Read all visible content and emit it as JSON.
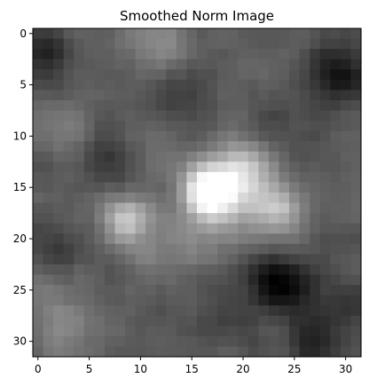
{
  "chart_data": {
    "type": "heatmap",
    "title": "Smoothed Norm Image",
    "xlabel": "",
    "ylabel": "",
    "colormap": "gray",
    "rows": 32,
    "cols": 32,
    "xlim": [
      -0.5,
      31.5
    ],
    "ylim": [
      31.5,
      -0.5
    ],
    "x_ticks": [
      0,
      5,
      10,
      15,
      20,
      25,
      30
    ],
    "y_ticks": [
      0,
      5,
      10,
      15,
      20,
      25,
      30
    ],
    "x_tick_labels": [
      "0",
      "5",
      "10",
      "15",
      "20",
      "25",
      "30"
    ],
    "y_tick_labels": [
      "0",
      "5",
      "10",
      "15",
      "20",
      "25",
      "30"
    ],
    "value_range": [
      0,
      1
    ],
    "blobs": [
      {
        "row": 15.5,
        "col": 16.5,
        "amp": 0.62,
        "sigma": 1.6
      },
      {
        "row": 15.5,
        "col": 19.0,
        "amp": 0.35,
        "sigma": 2.6
      },
      {
        "row": 17.0,
        "col": 23.5,
        "amp": 0.33,
        "sigma": 1.8
      },
      {
        "row": 18.0,
        "col": 8.5,
        "amp": 0.38,
        "sigma": 1.6
      },
      {
        "row": 13.0,
        "col": 19.5,
        "amp": 0.25,
        "sigma": 2.0
      },
      {
        "row": 1.0,
        "col": 12.0,
        "amp": 0.18,
        "sigma": 2.2
      },
      {
        "row": 20.0,
        "col": 14.0,
        "amp": 0.15,
        "sigma": 2.5
      },
      {
        "row": 26.0,
        "col": 1.5,
        "amp": 0.12,
        "sigma": 2.5
      },
      {
        "row": 22.0,
        "col": 10.5,
        "amp": 0.12,
        "sigma": 1.5
      },
      {
        "row": 12.0,
        "col": 12.0,
        "amp": 0.1,
        "sigma": 2.0
      },
      {
        "row": 9.0,
        "col": 2.0,
        "amp": 0.08,
        "sigma": 2.0
      },
      {
        "row": 30.0,
        "col": 2.0,
        "amp": 0.12,
        "sigma": 2.0
      },
      {
        "row": 4.0,
        "col": 29.5,
        "amp": -0.28,
        "sigma": 2.2
      },
      {
        "row": 24.0,
        "col": 22.5,
        "amp": -0.26,
        "sigma": 1.8
      },
      {
        "row": 25.0,
        "col": 25.0,
        "amp": -0.22,
        "sigma": 2.0
      },
      {
        "row": 30.0,
        "col": 27.0,
        "amp": -0.22,
        "sigma": 2.0
      },
      {
        "row": 2.0,
        "col": 1.0,
        "amp": -0.2,
        "sigma": 1.8
      },
      {
        "row": 6.0,
        "col": 14.0,
        "amp": -0.14,
        "sigma": 2.0
      },
      {
        "row": 21.0,
        "col": 2.0,
        "amp": -0.14,
        "sigma": 1.8
      },
      {
        "row": 12.5,
        "col": 7.0,
        "amp": -0.12,
        "sigma": 1.8
      },
      {
        "row": 27.0,
        "col": 31.0,
        "amp": -0.16,
        "sigma": 1.8
      },
      {
        "row": 28.0,
        "col": 18.0,
        "amp": -0.1,
        "sigma": 2.0
      },
      {
        "row": 9.0,
        "col": 24.0,
        "amp": -0.08,
        "sigma": 2.0
      }
    ],
    "base_level": 0.36
  }
}
